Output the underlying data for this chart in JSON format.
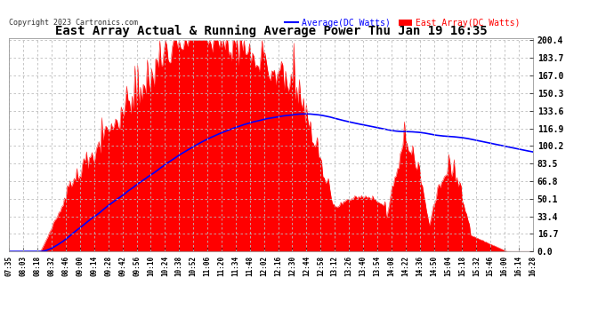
{
  "title": "East Array Actual & Running Average Power Thu Jan 19 16:35",
  "copyright": "Copyright 2023 Cartronics.com",
  "legend_avg": "Average(DC Watts)",
  "legend_east": "East Array(DC Watts)",
  "ylabel_right_ticks": [
    0.0,
    16.7,
    33.4,
    50.1,
    66.8,
    83.5,
    100.2,
    116.9,
    133.6,
    150.3,
    167.0,
    183.7,
    200.4
  ],
  "ymax": 200.4,
  "ymin": 0.0,
  "background_color": "#ffffff",
  "grid_color": "#bbbbbb",
  "fill_color": "#ff0000",
  "line_color": "#0000ff",
  "title_color": "#000000",
  "legend_avg_color": "#0000ff",
  "legend_east_color": "#ff0000",
  "x_labels": [
    "07:35",
    "08:03",
    "08:18",
    "08:32",
    "08:46",
    "09:00",
    "09:14",
    "09:28",
    "09:42",
    "09:56",
    "10:10",
    "10:24",
    "10:38",
    "10:52",
    "11:06",
    "11:20",
    "11:34",
    "11:48",
    "12:02",
    "12:16",
    "12:30",
    "12:44",
    "12:58",
    "13:12",
    "13:26",
    "13:40",
    "13:54",
    "14:08",
    "14:22",
    "14:36",
    "14:50",
    "15:04",
    "15:18",
    "15:32",
    "15:46",
    "16:00",
    "16:14",
    "16:28"
  ]
}
